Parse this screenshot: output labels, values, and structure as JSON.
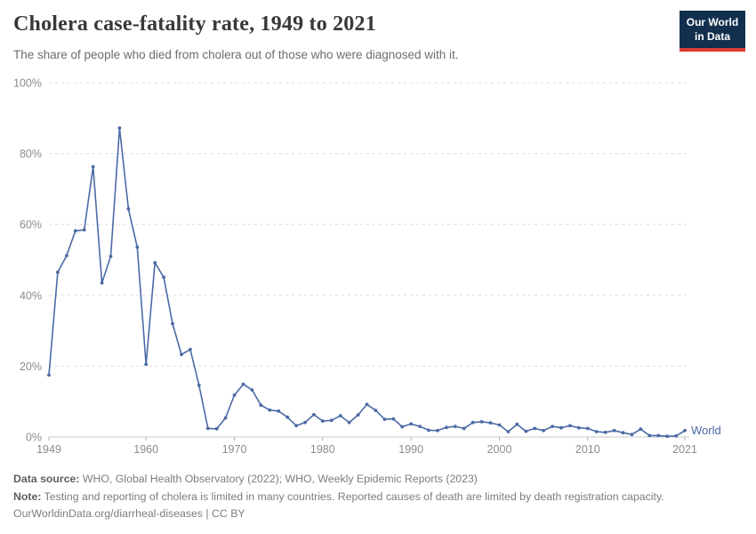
{
  "header": {
    "title": "Cholera case-fatality rate, 1949 to 2021",
    "subtitle": "The share of people who died from cholera out of those who were diagnosed with it."
  },
  "logo": {
    "line1": "Our World",
    "line2": "in Data",
    "bg_color": "#12304e",
    "accent_color": "#dc3c34"
  },
  "chart_data": {
    "type": "line",
    "title": "Cholera case-fatality rate, 1949 to 2021",
    "xlabel": "",
    "ylabel": "",
    "unit": "%",
    "xlim": [
      1949,
      2021
    ],
    "ylim": [
      0,
      100
    ],
    "x_ticks": [
      1949,
      1960,
      1970,
      1980,
      1990,
      2000,
      2010,
      2021
    ],
    "y_ticks": [
      0,
      20,
      40,
      60,
      80,
      100
    ],
    "grid": "horizontal-dashed",
    "legend_position": "end-of-line",
    "x": [
      1949,
      1950,
      1951,
      1952,
      1953,
      1954,
      1955,
      1956,
      1957,
      1958,
      1959,
      1960,
      1961,
      1962,
      1963,
      1964,
      1965,
      1966,
      1967,
      1968,
      1969,
      1970,
      1971,
      1972,
      1973,
      1974,
      1975,
      1976,
      1977,
      1978,
      1979,
      1980,
      1981,
      1982,
      1983,
      1984,
      1985,
      1986,
      1987,
      1988,
      1989,
      1990,
      1991,
      1992,
      1993,
      1994,
      1995,
      1996,
      1997,
      1998,
      1999,
      2000,
      2001,
      2002,
      2003,
      2004,
      2005,
      2006,
      2007,
      2008,
      2009,
      2010,
      2011,
      2012,
      2013,
      2014,
      2015,
      2016,
      2017,
      2018,
      2019,
      2020,
      2021
    ],
    "series": [
      {
        "name": "World",
        "color": "#4b6aa5",
        "values": [
          17.5,
          46.5,
          51.2,
          58.2,
          58.5,
          76.3,
          43.5,
          51.0,
          87.2,
          64.4,
          53.6,
          20.5,
          49.2,
          45.1,
          32.0,
          23.3,
          24.7,
          14.6,
          2.4,
          2.3,
          5.4,
          11.8,
          14.9,
          13.3,
          9.0,
          7.6,
          7.3,
          5.6,
          3.2,
          4.1,
          6.3,
          4.5,
          4.7,
          6.0,
          4.1,
          6.2,
          9.2,
          7.5,
          5.0,
          5.1,
          2.9,
          3.7,
          3.0,
          1.9,
          1.8,
          2.7,
          3.0,
          2.4,
          4.1,
          4.3,
          4.0,
          3.4,
          1.5,
          3.6,
          1.6,
          2.4,
          1.8,
          3.0,
          2.6,
          3.2,
          2.6,
          2.4,
          1.5,
          1.3,
          1.8,
          1.2,
          0.7,
          2.2,
          0.4,
          0.4,
          0.2,
          0.3,
          1.8
        ]
      }
    ]
  },
  "footer": {
    "source_label": "Data source:",
    "source_text": "WHO, Global Health Observatory (2022); WHO, Weekly Epidemic Reports (2023)",
    "note_label": "Note:",
    "note_text": "Testing and reporting of cholera is limited in many countries. Reported causes of death are limited by death registration capacity.",
    "license_text": "OurWorldinData.org/diarrheal-diseases | CC BY"
  }
}
